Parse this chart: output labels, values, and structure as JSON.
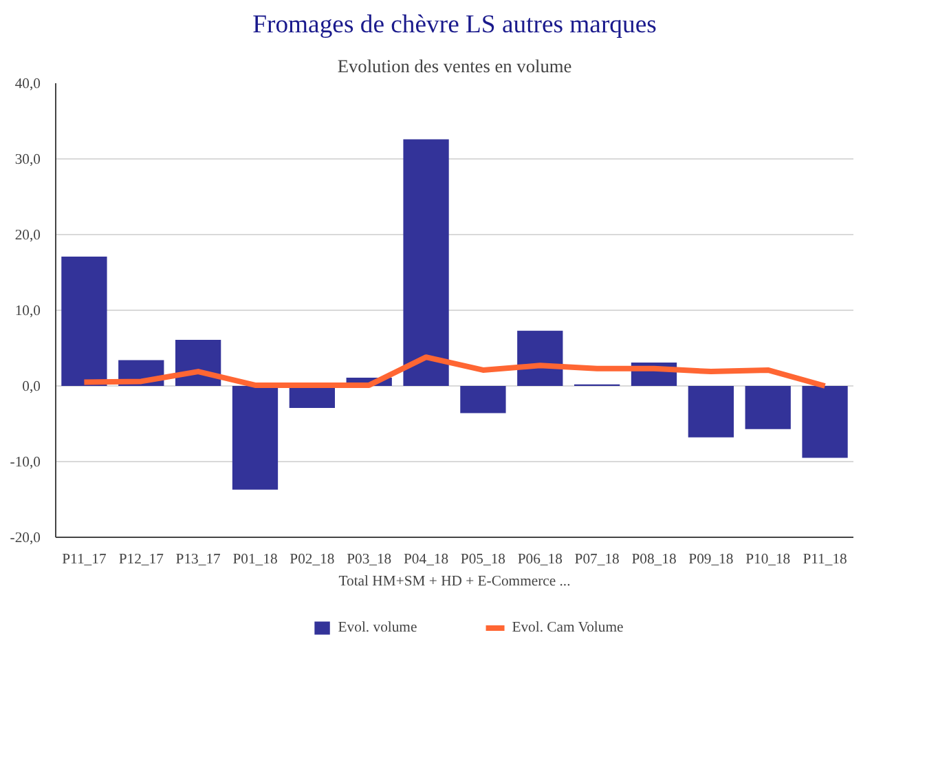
{
  "chart_data": {
    "type": "bar",
    "title": "Fromages de chèvre LS autres marques",
    "subtitle": "Evolution des ventes en volume",
    "xlabel": "Total HM+SM + HD + E-Commerce ...",
    "categories": [
      "P11_17",
      "P12_17",
      "P13_17",
      "P01_18",
      "P02_18",
      "P03_18",
      "P04_18",
      "P05_18",
      "P06_18",
      "P07_18",
      "P08_18",
      "P09_18",
      "P10_18",
      "P11_18"
    ],
    "series": [
      {
        "name": "Evol. volume",
        "color": "#333399",
        "values": [
          17.1,
          3.4,
          6.1,
          -13.7,
          -2.9,
          1.1,
          32.6,
          -3.6,
          7.3,
          0.2,
          3.1,
          -6.8,
          -5.7,
          -9.5
        ]
      },
      {
        "name": "Evol. Cam Volume",
        "type": "line",
        "color": "#ff6633",
        "values": [
          0.5,
          0.6,
          1.9,
          0.1,
          0.1,
          0.1,
          3.8,
          2.1,
          2.7,
          2.3,
          2.3,
          1.9,
          2.1,
          0.0
        ]
      }
    ],
    "ylim": [
      -20,
      40
    ],
    "yticks": [
      {
        "value": -20,
        "label": "-20,0"
      },
      {
        "value": -10,
        "label": "-10,0"
      },
      {
        "value": 0,
        "label": "0,0"
      },
      {
        "value": 10,
        "label": "10,0"
      },
      {
        "value": 20,
        "label": "20,0"
      },
      {
        "value": 30,
        "label": "30,0"
      },
      {
        "value": 40,
        "label": "40,0"
      }
    ],
    "grid": "y",
    "legend": "bottom"
  }
}
